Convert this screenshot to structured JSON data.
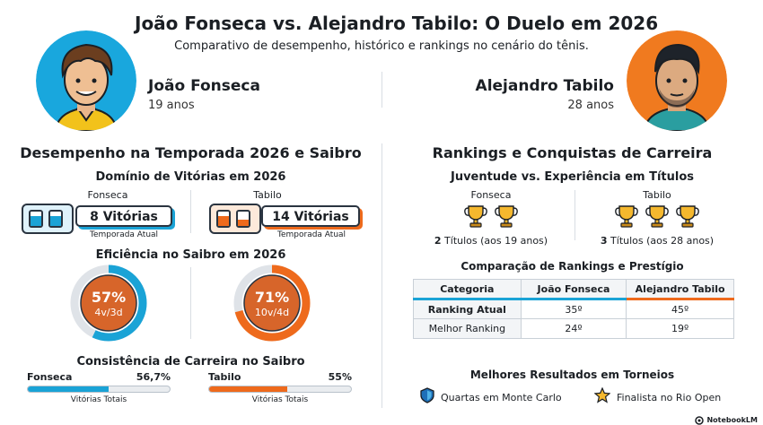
{
  "header": {
    "title": "João Fonseca vs. Alejandro Tabilo: O Duelo em 2026",
    "subtitle": "Comparativo de desempenho, histórico e rankings no cenário do tênis."
  },
  "players": {
    "left": {
      "name": "João Fonseca",
      "age": "19 anos",
      "color": "#1aa3d6"
    },
    "right": {
      "name": "Alejandro Tabilo",
      "age": "28 anos",
      "color": "#ee6a1c"
    }
  },
  "left_section": {
    "title": "Desempenho na Temporada 2026 e Saibro",
    "wins": {
      "title": "Domínio de Vitórias em 2026",
      "fonseca": {
        "label": "Fonseca",
        "value": "8 Vitórias",
        "caption": "Temporada Atual"
      },
      "tabilo": {
        "label": "Tabilo",
        "value": "14 Vitórias",
        "caption": "Temporada Atual"
      }
    },
    "clay": {
      "title": "Eficiência no Saibro em 2026",
      "fonseca": {
        "percent": "57%",
        "record": "4v/3d",
        "fraction": 0.57
      },
      "tabilo": {
        "percent": "71%",
        "record": "10v/4d",
        "fraction": 0.71
      }
    },
    "career": {
      "title": "Consistência de Carreira no Saibro",
      "fonseca": {
        "label": "Fonseca",
        "value": "56,7%",
        "caption": "Vitórias Totais",
        "fraction": 0.567
      },
      "tabilo": {
        "label": "Tabilo",
        "value": "55%",
        "caption": "Vitórias Totais",
        "fraction": 0.55
      }
    }
  },
  "right_section": {
    "title": "Rankings e Conquistas de Carreira",
    "titles": {
      "title": "Juventude vs. Experiência em Títulos",
      "fonseca": {
        "label": "Fonseca",
        "count_bold": "2",
        "caption": " Títulos (aos 19 anos)",
        "trophies": 2
      },
      "tabilo": {
        "label": "Tabilo",
        "count_bold": "3",
        "caption": " Títulos (aos 28 anos)",
        "trophies": 3
      }
    },
    "rankings": {
      "title": "Comparação de Rankings e Prestígio",
      "headers": [
        "Categoria",
        "João Fonseca",
        "Alejandro Tabilo"
      ],
      "rows": [
        [
          "Ranking Atual",
          "35º",
          "45º"
        ],
        [
          "Melhor Ranking",
          "24º",
          "19º"
        ]
      ]
    },
    "tournaments": {
      "title": "Melhores Resultados em Torneios",
      "fonseca": "Quartas em Monte Carlo",
      "tabilo": "Finalista no Rio Open"
    }
  },
  "footer": {
    "brand": "NotebookLM"
  }
}
